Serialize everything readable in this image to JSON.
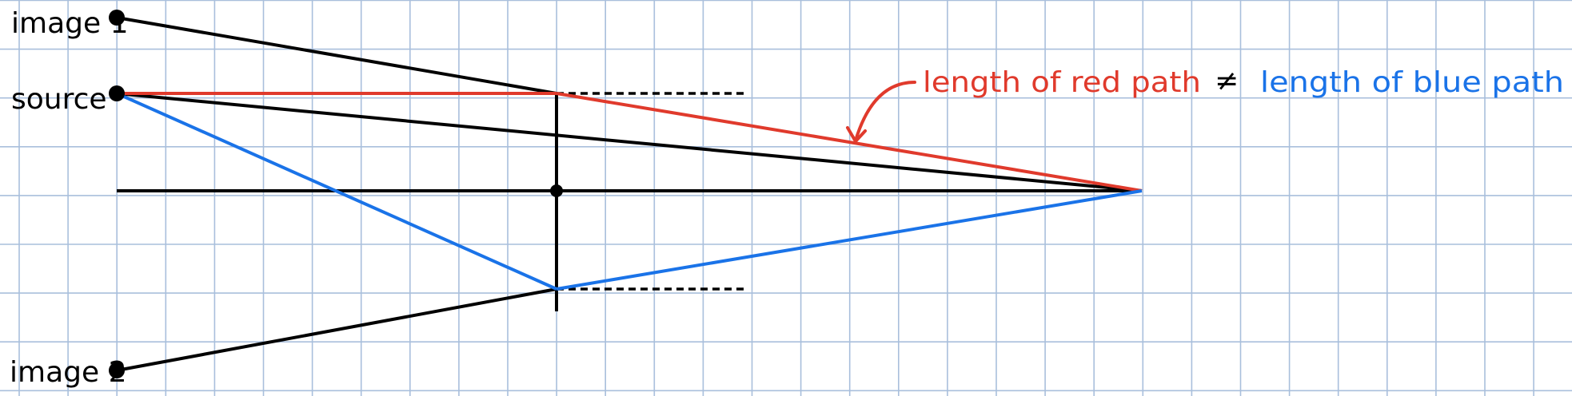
{
  "labels": {
    "image1": "image 1",
    "source": "source",
    "image2": "image 2"
  },
  "annotation": {
    "red_text": "length of red path",
    "neq": "≠",
    "blue_text": "length of blue path"
  },
  "colors": {
    "grid": "#a9bfdc",
    "ink": "#000000",
    "red": "#e03a2c",
    "blue": "#1a73e8"
  }
}
